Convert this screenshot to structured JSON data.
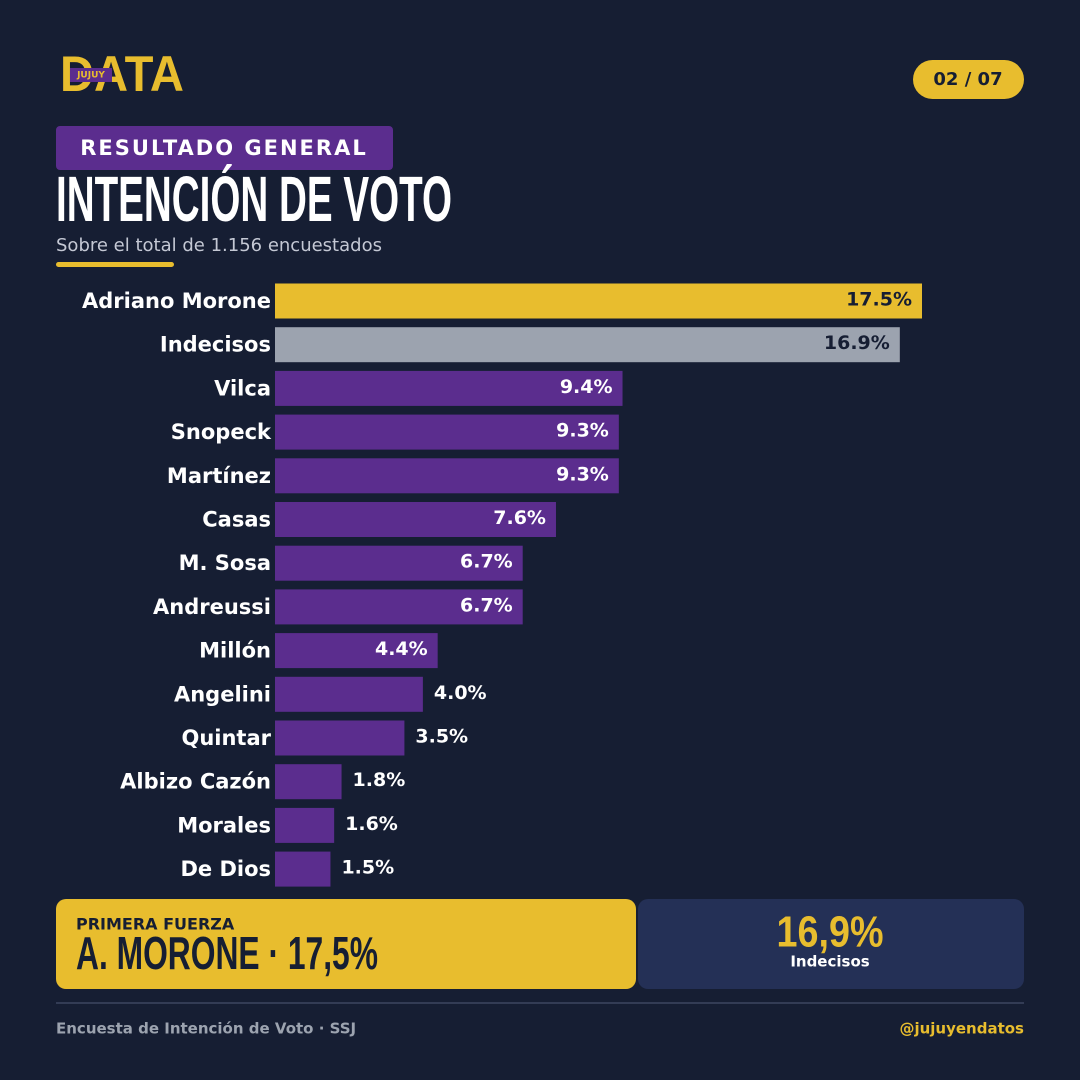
{
  "header": {
    "logo": "DATA",
    "logo_tag": "JUJUY",
    "page": "02 / 07",
    "badge": "RESULTADO GENERAL"
  },
  "chart_data": {
    "type": "hbar",
    "title": "INTENCIÓN DE VOTO",
    "subtitle": "Sobre el total de 1.156 encuestados",
    "categories": [
      "Adriano Morone",
      "Indecisos",
      "Vilca",
      "Snopeck",
      "Martínez",
      "Casas",
      "M. Sosa",
      "Andreussi",
      "Millón",
      "Angelini",
      "Quintar",
      "Albizo Cazón",
      "Morales",
      "De Dios"
    ],
    "values": [
      17.5,
      16.9,
      9.4,
      9.3,
      9.3,
      7.6,
      6.7,
      6.7,
      4.4,
      4.0,
      3.5,
      1.8,
      1.6,
      1.5
    ],
    "value_labels": [
      "17.5%",
      "16.9%",
      "9.4%",
      "9.3%",
      "9.3%",
      "7.6%",
      "6.7%",
      "6.7%",
      "4.4%",
      "4.0%",
      "3.5%",
      "1.8%",
      "1.6%",
      "1.5%"
    ],
    "colors": [
      "#e8bd2e",
      "#9ca3af",
      "#5b2d8e",
      "#5b2d8e",
      "#5b2d8e",
      "#5b2d8e",
      "#5b2d8e",
      "#5b2d8e",
      "#5b2d8e",
      "#5b2d8e",
      "#5b2d8e",
      "#5b2d8e",
      "#5b2d8e",
      "#5b2d8e"
    ]
  },
  "highlights": {
    "lead_label": "PRIMERA FUERZA",
    "lead_value": "A. MORONE · 17,5%",
    "undecided_value": "16,9%",
    "undecided_label": "Indecisos"
  },
  "footer": {
    "source": "Encuesta de Intención de Voto · SSJ",
    "handle": "@jujuyendatos"
  }
}
